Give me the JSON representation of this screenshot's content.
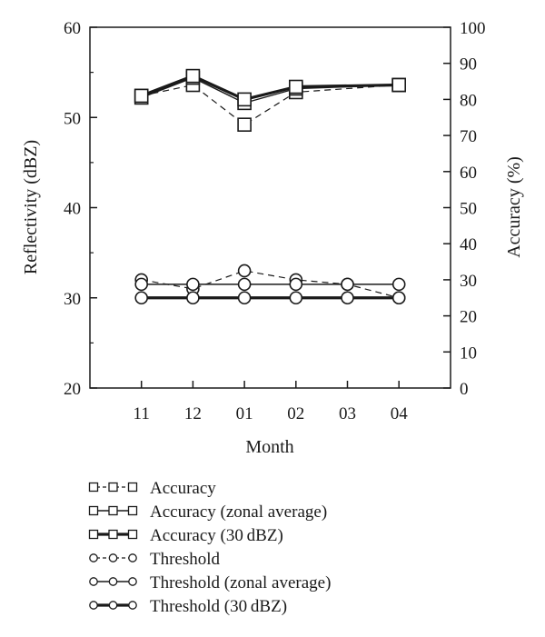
{
  "chart_data": {
    "type": "line",
    "xlabel": "Month",
    "ylabel_left": "Reflectivity (dBZ)",
    "ylabel_right": "Accuracy (%)",
    "categories": [
      "11",
      "12",
      "01",
      "02",
      "03",
      "04"
    ],
    "ylim_left": [
      20,
      60
    ],
    "ylim_right": [
      0,
      100
    ],
    "yticks_left": [
      "20",
      "30",
      "40",
      "50",
      "60"
    ],
    "yticks_right": [
      "0",
      "10",
      "20",
      "30",
      "40",
      "50",
      "60",
      "70",
      "80",
      "90",
      "100"
    ],
    "grid": false,
    "legend_position": "bottom",
    "series": [
      {
        "name": "Accuracy",
        "axis": "right",
        "marker": "square",
        "line": "dashed",
        "values": [
          81,
          84,
          73,
          82,
          null,
          84
        ]
      },
      {
        "name": "Accuracy (zonal average)",
        "axis": "right",
        "marker": "square",
        "line": "solid",
        "values": [
          80.5,
          86,
          79,
          83,
          null,
          84
        ]
      },
      {
        "name": "Accuracy (30 dBZ)",
        "axis": "right",
        "marker": "square",
        "line": "bold",
        "values": [
          81,
          86.5,
          80,
          83.5,
          null,
          84
        ]
      },
      {
        "name": "Threshold",
        "axis": "left",
        "marker": "circle",
        "line": "dashed",
        "values": [
          32,
          31,
          33,
          32,
          31.5,
          30
        ]
      },
      {
        "name": "Threshold (zonal average)",
        "axis": "left",
        "marker": "circle",
        "line": "solid",
        "values": [
          31.5,
          31.5,
          31.5,
          31.5,
          31.5,
          31.5
        ]
      },
      {
        "name": "Threshold (30 dBZ)",
        "axis": "left",
        "marker": "circle",
        "line": "bold",
        "values": [
          30,
          30,
          30,
          30,
          30,
          30
        ]
      }
    ]
  }
}
